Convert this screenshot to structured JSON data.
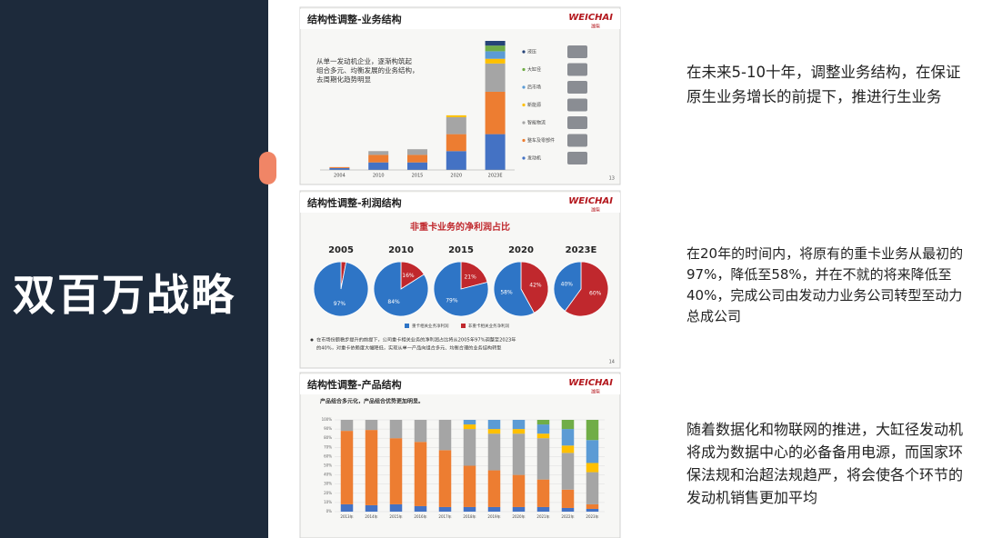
{
  "sidebar": {
    "title": "双百万战略"
  },
  "slides": [
    {
      "title": "结构性调整-业务结构",
      "logo": "WEICHAI",
      "logo_sub": "潍柴",
      "page": "13",
      "text_lines": [
        "从单一发动机企业，逐渐构筑起",
        "组合多元、均衡发展的业务结构，",
        "去周期化趋势明显"
      ],
      "chart_data": {
        "type": "bar",
        "stacked": true,
        "categories": [
          "2004",
          "2010",
          "2015",
          "2020",
          "2023E"
        ],
        "series": [
          {
            "name": "发动机",
            "color": "#4472c4",
            "values": [
              2,
              8,
              8,
              20,
              38
            ]
          },
          {
            "name": "整车及零部件",
            "color": "#ed7d31",
            "values": [
              1,
              8,
              8,
              18,
              45
            ]
          },
          {
            "name": "智能物流",
            "color": "#a5a5a5",
            "values": [
              0,
              4,
              6,
              18,
              30
            ]
          },
          {
            "name": "新能源",
            "color": "#ffc000",
            "values": [
              0,
              0,
              0,
              2,
              5
            ]
          },
          {
            "name": "后市场",
            "color": "#5b9bd5",
            "values": [
              0,
              0,
              0,
              0,
              8
            ]
          },
          {
            "name": "大缸径",
            "color": "#70ad47",
            "values": [
              0,
              0,
              0,
              0,
              6
            ]
          },
          {
            "name": "液压",
            "color": "#264478",
            "values": [
              0,
              0,
              0,
              0,
              5
            ]
          }
        ]
      }
    },
    {
      "title": "结构性调整-利润结构",
      "logo": "WEICHAI",
      "logo_sub": "潍柴",
      "page": "14",
      "subtitle": "非重卡业务的净利润占比",
      "note_lines": [
        "在市场份额稳步提升的前提下，公司重卡相关业务的净利润占比将从2005年97%调整至2023年",
        "的40%，对重卡依赖度大幅降低，实现从单一产品向组合多元、均衡合理的业务结构转型"
      ],
      "chart_data": {
        "type": "pie",
        "categories": [
          "2005",
          "2010",
          "2015",
          "2020",
          "2023E"
        ],
        "series": [
          {
            "name": "重卡相关业务净利润",
            "color": "#2e75c6",
            "values": [
              97,
              84,
              79,
              58,
              40
            ],
            "value_labels": [
              "97%",
              "84%",
              "79%",
              "58%",
              "40%"
            ]
          },
          {
            "name": "非重卡相关业务净利润",
            "color": "#c0282d",
            "values": [
              3,
              16,
              21,
              42,
              60
            ],
            "value_labels": [
              null,
              "16%",
              "21%",
              "42%",
              "60%"
            ]
          }
        ]
      }
    },
    {
      "title": "结构性调整-产品结构",
      "logo": "WEICHAI",
      "logo_sub": "潍柴",
      "subtitle": "产品组合多元化，产品组合优势更加明显。",
      "chart_data": {
        "type": "bar",
        "stacked": true,
        "categories": [
          "2013年",
          "2014年",
          "2015年",
          "2016年",
          "2017年",
          "2018年",
          "2019年",
          "2020年",
          "2021年",
          "2022年",
          "2023年"
        ],
        "ylim": [
          0,
          100
        ],
        "yticks": [
          {
            "value": 0,
            "label": "0%"
          },
          {
            "value": 10,
            "label": "10%"
          },
          {
            "value": 20,
            "label": "20%"
          },
          {
            "value": 30,
            "label": "30%"
          },
          {
            "value": 40,
            "label": "40%"
          },
          {
            "value": 50,
            "label": "50%"
          },
          {
            "value": 60,
            "label": "60%"
          },
          {
            "value": 70,
            "label": "70%"
          },
          {
            "value": 80,
            "label": "80%"
          },
          {
            "value": 90,
            "label": "90%"
          },
          {
            "value": 100,
            "label": "100%"
          }
        ],
        "grid": true,
        "series": [
          {
            "color": "#4472c4",
            "values": [
              8,
              7,
              8,
              6,
              5,
              5,
              5,
              5,
              5,
              4,
              3
            ]
          },
          {
            "color": "#ed7d31",
            "values": [
              80,
              82,
              72,
              70,
              62,
              45,
              40,
              35,
              30,
              20,
              5
            ]
          },
          {
            "color": "#a5a5a5",
            "values": [
              12,
              11,
              20,
              24,
              33,
              40,
              40,
              45,
              45,
              40,
              35
            ]
          },
          {
            "color": "#ffc000",
            "values": [
              0,
              0,
              0,
              0,
              0,
              5,
              5,
              5,
              5,
              8,
              10
            ]
          },
          {
            "color": "#5b9bd5",
            "values": [
              0,
              0,
              0,
              0,
              0,
              5,
              10,
              10,
              10,
              18,
              25
            ]
          },
          {
            "color": "#70ad47",
            "values": [
              0,
              0,
              0,
              0,
              0,
              0,
              0,
              0,
              5,
              10,
              22
            ]
          }
        ]
      }
    }
  ],
  "notes": [
    "在未来5-10十年，调整业务结构，在保证原生业务增长的前提下，推进行生业务",
    "在20年的时间内，将原有的重卡业务从最初的97%，降低至58%，并在不就的将来降低至40%，完成公司由发动力业务公司转型至动力总成公司",
    "随着数据化和物联网的推进，大缸径发动机将成为数据中心的必备备用电源，而国家环保法规和治超法规趋严，将会使各个环节的发动机销售更加平均"
  ]
}
